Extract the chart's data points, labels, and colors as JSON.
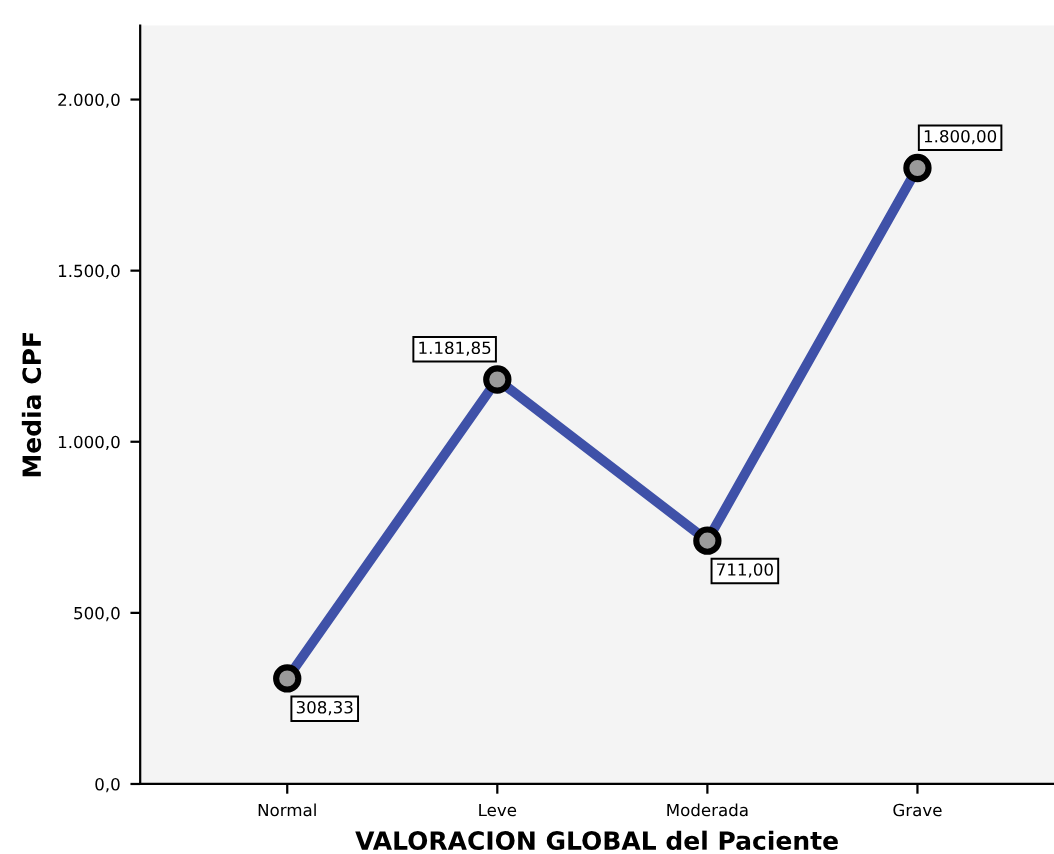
{
  "chart_data": {
    "type": "line",
    "xlabel": "VALORACION GLOBAL del Paciente",
    "ylabel": "Media CPF",
    "categories": [
      "Normal",
      "Leve",
      "Moderada",
      "Grave"
    ],
    "series": [
      {
        "color": "#3f51a8",
        "values": [
          308.33,
          1181.85,
          711.0,
          1800.0
        ],
        "value_labels": [
          "308,33",
          "1.181,85",
          "711,00",
          "1.800,00"
        ]
      }
    ],
    "ylim": [
      0,
      2216
    ],
    "yticks": [
      {
        "value": 0,
        "label": "0,0"
      },
      {
        "value": 500,
        "label": "500,0"
      },
      {
        "value": 1000,
        "label": "1.000,0"
      },
      {
        "value": 1500,
        "label": "1.500,0"
      },
      {
        "value": 2000,
        "label": "2.000,0"
      }
    ],
    "marker": "circle",
    "line_style": "solid",
    "grid": false,
    "legend": false
  }
}
